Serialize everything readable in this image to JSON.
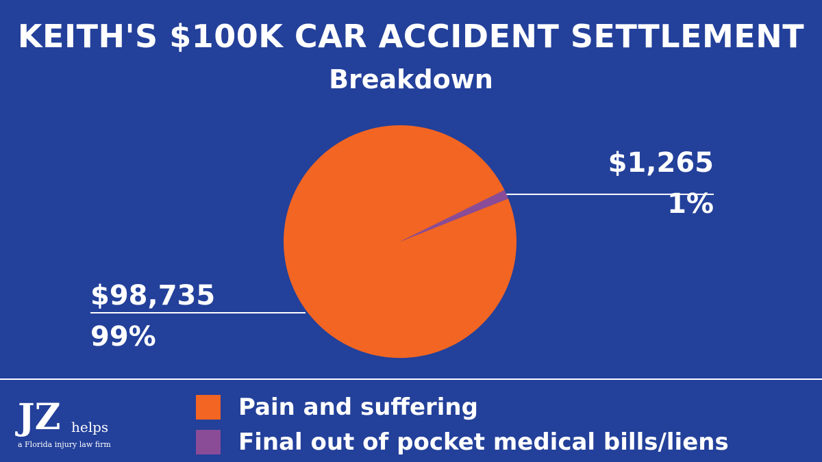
{
  "header": {
    "title": "KEITH'S $100K CAR ACCIDENT SETTLEMENT",
    "subtitle": "Breakdown"
  },
  "colors": {
    "background": "#23409a",
    "text": "#ffffff",
    "pain_and_suffering": "#f26522",
    "medical_bills": "#8a4c97"
  },
  "chart_data": {
    "type": "pie",
    "title": "KEITH'S $100K CAR ACCIDENT SETTLEMENT",
    "subtitle": "Breakdown",
    "slices": [
      {
        "label": "Pain and suffering",
        "value": 98735,
        "value_label": "$98,735",
        "percent_label": "99%",
        "color": "#f26522"
      },
      {
        "label": "Final out of pocket medical bills/liens",
        "value": 1265,
        "value_label": "$1,265",
        "percent_label": "1%",
        "color": "#8a4c97"
      }
    ],
    "legend_position": "bottom"
  },
  "logo": {
    "mark": "JZ",
    "word": "helps",
    "tagline": "a Florida injury law firm"
  }
}
